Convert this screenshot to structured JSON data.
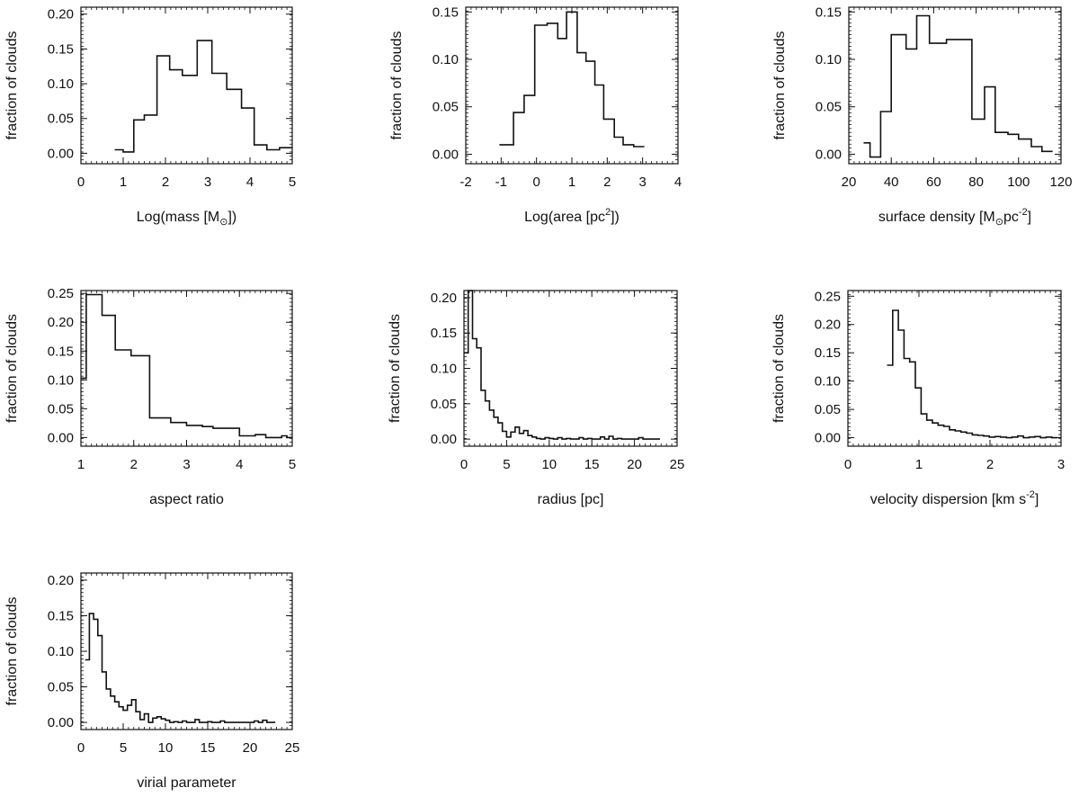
{
  "figure": {
    "background": "#ffffff",
    "line_color": "#111111"
  },
  "chart_data": [
    {
      "type": "histogram",
      "id": "mass",
      "xlabel": "Log(mass  [M",
      "xlabel_sub": "⊙",
      "xlabel_sup": "",
      "xlabel_tail": "])",
      "ylabel": "fraction of clouds",
      "xlim": [
        0,
        5
      ],
      "ylim": [
        -0.015,
        0.21
      ],
      "xticks": [
        0,
        1,
        2,
        3,
        4,
        5
      ],
      "xtick_labels": [
        "0",
        "1",
        "2",
        "3",
        "4",
        "5"
      ],
      "yticks": [
        0.0,
        0.05,
        0.1,
        0.15,
        0.2
      ],
      "ytick_labels": [
        "0.00",
        "0.05",
        "0.10",
        "0.15",
        "0.20"
      ],
      "bin_edges": [
        0.8,
        1.0,
        1.25,
        1.5,
        1.8,
        2.1,
        2.4,
        2.75,
        3.1,
        3.45,
        3.8,
        4.1,
        4.4,
        4.7,
        5.0
      ],
      "values": [
        0.005,
        0.002,
        0.048,
        0.055,
        0.14,
        0.12,
        0.112,
        0.162,
        0.115,
        0.092,
        0.065,
        0.012,
        0.005,
        0.008
      ]
    },
    {
      "type": "histogram",
      "id": "area",
      "xlabel": "Log(area [pc",
      "xlabel_sub": "",
      "xlabel_sup": "2",
      "xlabel_tail": "])",
      "ylabel": "fraction of clouds",
      "xlim": [
        -2,
        4
      ],
      "ylim": [
        -0.01,
        0.155
      ],
      "xticks": [
        -2,
        -1,
        0,
        1,
        2,
        3,
        4
      ],
      "xtick_labels": [
        "-2",
        "-1",
        "0",
        "1",
        "2",
        "3",
        "4"
      ],
      "yticks": [
        0.0,
        0.05,
        0.1,
        0.15
      ],
      "ytick_labels": [
        "0.00",
        "0.05",
        "0.10",
        "0.15"
      ],
      "bin_edges": [
        -1.05,
        -0.65,
        -0.35,
        -0.05,
        0.3,
        0.6,
        0.85,
        1.15,
        1.4,
        1.65,
        1.9,
        2.2,
        2.45,
        2.75,
        3.05
      ],
      "values": [
        0.01,
        0.044,
        0.062,
        0.136,
        0.138,
        0.122,
        0.15,
        0.107,
        0.098,
        0.073,
        0.037,
        0.018,
        0.01,
        0.008
      ]
    },
    {
      "type": "histogram",
      "id": "surface-density",
      "xlabel": "surface density [M",
      "xlabel_sub": "⊙",
      "xlabel_sup": "",
      "xlabel_tail": "pc",
      "xlabel_tail_sup": "-2",
      "xlabel_end": "]",
      "ylabel": "fraction of clouds",
      "xlim": [
        20,
        120
      ],
      "ylim": [
        -0.01,
        0.155
      ],
      "xticks": [
        20,
        40,
        60,
        80,
        100,
        120
      ],
      "xtick_labels": [
        "20",
        "40",
        "60",
        "80",
        "100",
        "120"
      ],
      "yticks": [
        0.0,
        0.05,
        0.1,
        0.15
      ],
      "ytick_labels": [
        "0.00",
        "0.05",
        "0.10",
        "0.15"
      ],
      "bin_edges": [
        27,
        30,
        35,
        40,
        47,
        52,
        58,
        66,
        78,
        84,
        89,
        95,
        100,
        106,
        111,
        116
      ],
      "values": [
        0.012,
        -0.003,
        0.045,
        0.126,
        0.111,
        0.146,
        0.117,
        0.121,
        0.037,
        0.071,
        0.023,
        0.021,
        0.016,
        0.008,
        0.003
      ]
    },
    {
      "type": "histogram",
      "id": "aspect-ratio",
      "xlabel": "aspect ratio",
      "ylabel": "fraction of clouds",
      "xlim": [
        1,
        5
      ],
      "ylim": [
        -0.015,
        0.255
      ],
      "xticks": [
        1,
        2,
        3,
        4,
        5
      ],
      "xtick_labels": [
        "1",
        "2",
        "3",
        "4",
        "5"
      ],
      "yticks": [
        0.0,
        0.05,
        0.1,
        0.15,
        0.2,
        0.25
      ],
      "ytick_labels": [
        "0.00",
        "0.05",
        "0.10",
        "0.15",
        "0.20",
        "0.25"
      ],
      "bin_edges": [
        1.0,
        1.1,
        1.4,
        1.65,
        1.95,
        2.3,
        2.7,
        3.0,
        3.3,
        3.5,
        4.0,
        4.3,
        4.5,
        4.8,
        4.9,
        5.0
      ],
      "values": [
        0.103,
        0.248,
        0.212,
        0.152,
        0.142,
        0.034,
        0.026,
        0.021,
        0.019,
        0.016,
        0.003,
        0.005,
        0.0,
        0.003,
        0.0
      ]
    },
    {
      "type": "histogram",
      "id": "radius",
      "xlabel": "radius [pc]",
      "ylabel": "fraction of clouds",
      "xlim": [
        0,
        25
      ],
      "ylim": [
        -0.01,
        0.21
      ],
      "xticks": [
        0,
        5,
        10,
        15,
        20,
        25
      ],
      "xtick_labels": [
        "0",
        "5",
        "10",
        "15",
        "20",
        "25"
      ],
      "yticks": [
        0.0,
        0.05,
        0.1,
        0.15,
        0.2
      ],
      "ytick_labels": [
        "0.00",
        "0.05",
        "0.10",
        "0.15",
        "0.20"
      ],
      "bin_edges": [
        0.0,
        0.5,
        1.0,
        1.5,
        2.0,
        2.5,
        3.0,
        3.5,
        4.0,
        4.5,
        5.0,
        5.5,
        6.0,
        6.5,
        7.0,
        7.5,
        8.0,
        8.5,
        9.0,
        9.5,
        10.0,
        10.5,
        11.0,
        11.5,
        12.0,
        12.5,
        13.0,
        13.5,
        14.0,
        14.5,
        15.0,
        15.5,
        16.0,
        16.5,
        17.0,
        17.5,
        18.0,
        18.5,
        19.0,
        19.5,
        20.0,
        20.5,
        21.0,
        21.5,
        22.0,
        22.5,
        23.0
      ],
      "values": [
        0.122,
        0.21,
        0.142,
        0.129,
        0.069,
        0.054,
        0.041,
        0.031,
        0.023,
        0.011,
        0.003,
        0.01,
        0.017,
        0.008,
        0.012,
        0.005,
        0.003,
        0.001,
        0.0,
        0.002,
        0.001,
        0.0,
        0.002,
        0.0,
        0.001,
        0.0,
        0.0,
        0.002,
        0.0,
        0.001,
        0.0,
        0.0,
        0.003,
        0.0,
        0.004,
        0.0,
        0.001,
        0.0,
        0.0,
        0.0,
        0.0,
        0.002,
        0.0,
        0.0,
        0.0,
        0.0
      ]
    },
    {
      "type": "histogram",
      "id": "velocity-dispersion",
      "xlabel": "velocity dispersion [km s",
      "xlabel_sub": "",
      "xlabel_sup": "-2",
      "xlabel_tail": "]",
      "ylabel": "fraction of clouds",
      "xlim": [
        0,
        3
      ],
      "ylim": [
        -0.015,
        0.26
      ],
      "xticks": [
        0,
        1,
        2,
        3
      ],
      "xtick_labels": [
        "0",
        "1",
        "2",
        "3"
      ],
      "yticks": [
        0.0,
        0.05,
        0.1,
        0.15,
        0.2,
        0.25
      ],
      "ytick_labels": [
        "0.00",
        "0.05",
        "0.10",
        "0.15",
        "0.20",
        "0.25"
      ],
      "bin_edges": [
        0.55,
        0.63,
        0.71,
        0.79,
        0.87,
        0.95,
        1.03,
        1.11,
        1.19,
        1.27,
        1.35,
        1.43,
        1.51,
        1.59,
        1.67,
        1.75,
        1.83,
        1.91,
        1.99,
        2.07,
        2.15,
        2.23,
        2.31,
        2.39,
        2.47,
        2.55,
        2.63,
        2.71,
        2.79,
        2.87,
        2.95
      ],
      "values": [
        0.128,
        0.225,
        0.19,
        0.14,
        0.134,
        0.088,
        0.042,
        0.031,
        0.026,
        0.022,
        0.02,
        0.014,
        0.012,
        0.01,
        0.008,
        0.005,
        0.004,
        0.003,
        0.001,
        0.002,
        0.001,
        0.0,
        0.001,
        0.003,
        0.0,
        0.001,
        0.002,
        0.0,
        0.001,
        0.0
      ]
    },
    {
      "type": "histogram",
      "id": "virial-parameter",
      "xlabel": "virial parameter",
      "ylabel": "fraction of clouds",
      "xlim": [
        0,
        25
      ],
      "ylim": [
        -0.01,
        0.21
      ],
      "xticks": [
        0,
        5,
        10,
        15,
        20,
        25
      ],
      "xtick_labels": [
        "0",
        "5",
        "10",
        "15",
        "20",
        "25"
      ],
      "yticks": [
        0.0,
        0.05,
        0.1,
        0.15,
        0.2
      ],
      "ytick_labels": [
        "0.00",
        "0.05",
        "0.10",
        "0.15",
        "0.20"
      ],
      "bin_edges": [
        0.5,
        1.0,
        1.5,
        2.0,
        2.5,
        3.0,
        3.5,
        4.0,
        4.5,
        5.0,
        5.5,
        6.0,
        6.5,
        7.0,
        7.5,
        8.0,
        8.5,
        9.0,
        9.5,
        10.0,
        10.5,
        11.0,
        11.5,
        12.0,
        12.5,
        13.0,
        13.5,
        14.0,
        14.5,
        15.0,
        15.5,
        16.0,
        16.5,
        17.0,
        17.5,
        18.0,
        18.5,
        19.0,
        19.5,
        20.0,
        20.5,
        21.0,
        21.5,
        22.0,
        22.5,
        23.0
      ],
      "values": [
        0.088,
        0.153,
        0.145,
        0.122,
        0.071,
        0.047,
        0.037,
        0.029,
        0.022,
        0.017,
        0.024,
        0.032,
        0.015,
        0.004,
        0.012,
        0.0,
        0.006,
        0.008,
        0.005,
        0.003,
        0.0,
        0.001,
        0.0,
        0.002,
        0.0,
        0.0,
        0.004,
        0.0,
        0.0,
        0.001,
        0.0,
        0.0,
        0.002,
        0.0,
        0.0,
        0.0,
        0.0,
        0.0,
        0.0,
        0.0,
        0.002,
        0.0,
        0.003,
        0.0,
        0.0
      ]
    }
  ]
}
